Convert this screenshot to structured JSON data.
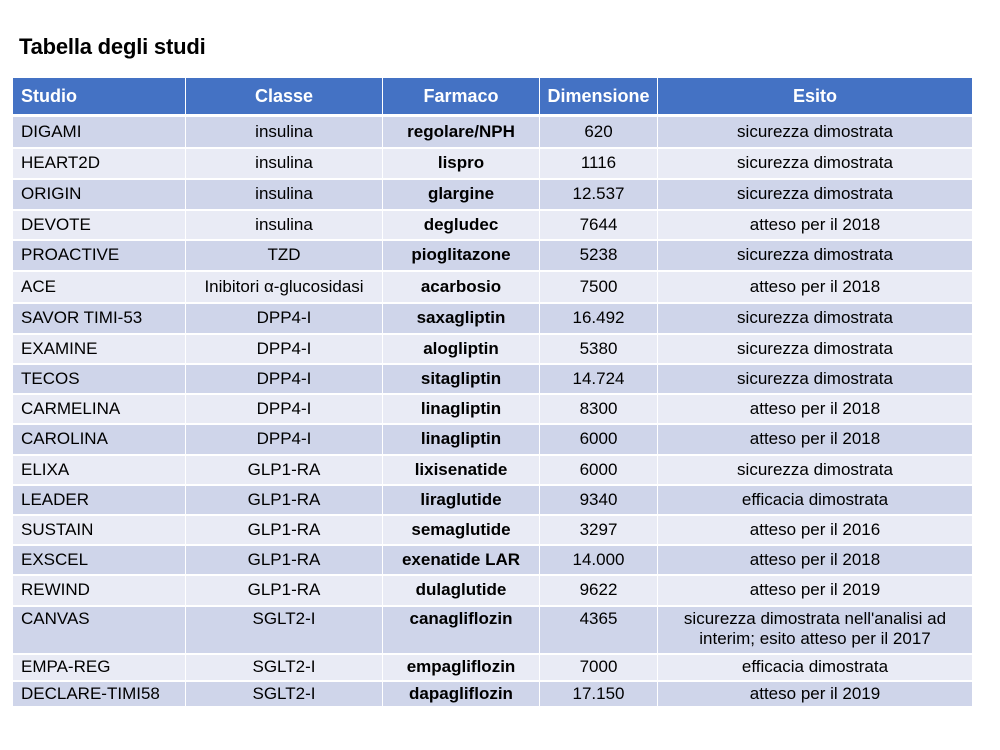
{
  "title": "Tabella degli studi",
  "header": {
    "studio": "Studio",
    "classe": "Classe",
    "farmaco": "Farmaco",
    "dimensione": "Dimensione",
    "esito": "Esito"
  },
  "rows": [
    {
      "studio": "DIGAMI",
      "classe": "insulina",
      "farmaco": "regolare/NPH",
      "dimensione": "620",
      "esito": "sicurezza dimostrata"
    },
    {
      "studio": "HEART2D",
      "classe": "insulina",
      "farmaco": "lispro",
      "dimensione": "1116",
      "esito": "sicurezza dimostrata"
    },
    {
      "studio": "ORIGIN",
      "classe": "insulina",
      "farmaco": "glargine",
      "dimensione": "12.537",
      "esito": "sicurezza dimostrata"
    },
    {
      "studio": "DEVOTE",
      "classe": "insulina",
      "farmaco": "degludec",
      "dimensione": "7644",
      "esito": "atteso per il 2018"
    },
    {
      "studio": "PROACTIVE",
      "classe": "TZD",
      "farmaco": "pioglitazone",
      "dimensione": "5238",
      "esito": "sicurezza dimostrata"
    },
    {
      "studio": "ACE",
      "classe": "Inibitori α-glucosidasi",
      "farmaco": "acarbosio",
      "dimensione": "7500",
      "esito": "atteso per il 2018"
    },
    {
      "studio": "SAVOR TIMI-53",
      "classe": "DPP4-I",
      "farmaco": "saxagliptin",
      "dimensione": "16.492",
      "esito": "sicurezza dimostrata"
    },
    {
      "studio": "EXAMINE",
      "classe": "DPP4-I",
      "farmaco": "alogliptin",
      "dimensione": "5380",
      "esito": "sicurezza dimostrata"
    },
    {
      "studio": "TECOS",
      "classe": "DPP4-I",
      "farmaco": "sitagliptin",
      "dimensione": "14.724",
      "esito": "sicurezza dimostrata"
    },
    {
      "studio": "CARMELINA",
      "classe": "DPP4-I",
      "farmaco": "linagliptin",
      "dimensione": "8300",
      "esito": "atteso per il 2018"
    },
    {
      "studio": "CAROLINA",
      "classe": "DPP4-I",
      "farmaco": "linagliptin",
      "dimensione": "6000",
      "esito": "atteso per il 2018"
    },
    {
      "studio": "ELIXA",
      "classe": "GLP1-RA",
      "farmaco": "lixisenatide",
      "dimensione": "6000",
      "esito": "sicurezza dimostrata"
    },
    {
      "studio": "LEADER",
      "classe": "GLP1-RA",
      "farmaco": "liraglutide",
      "dimensione": "9340",
      "esito": "efficacia dimostrata"
    },
    {
      "studio": "SUSTAIN",
      "classe": "GLP1-RA",
      "farmaco": "semaglutide",
      "dimensione": "3297",
      "esito": "atteso per il 2016"
    },
    {
      "studio": "EXSCEL",
      "classe": "GLP1-RA",
      "farmaco": "exenatide LAR",
      "dimensione": "14.000",
      "esito": "atteso per il 2018"
    },
    {
      "studio": "REWIND",
      "classe": "GLP1-RA",
      "farmaco": "dulaglutide",
      "dimensione": "9622",
      "esito": "atteso per il 2019"
    },
    {
      "studio": "CANVAS",
      "classe": "SGLT2-I",
      "farmaco": "canagliflozin",
      "dimensione": "4365",
      "esito": "sicurezza dimostrata nell'analisi ad interim; esito atteso per il 2017"
    },
    {
      "studio": "EMPA-REG",
      "classe": "SGLT2-I",
      "farmaco": "empagliflozin",
      "dimensione": "7000",
      "esito": "efficacia dimostrata"
    },
    {
      "studio": "DECLARE-TIMI58",
      "classe": "SGLT2-I",
      "farmaco": "dapagliflozin",
      "dimensione": "17.150",
      "esito": "atteso per il 2019"
    }
  ]
}
